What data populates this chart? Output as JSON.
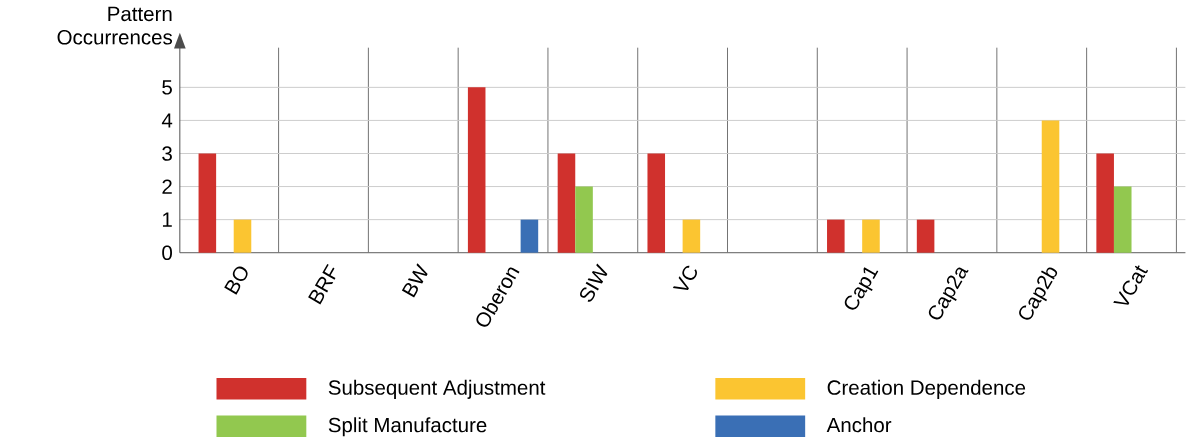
{
  "chart_data": {
    "type": "bar",
    "ylabel": "Pattern Occurrences",
    "categories": [
      "BO",
      "BRF",
      "BW",
      "Oberon",
      "SIW",
      "VC",
      null,
      "Cap1",
      "Cap2a",
      "Cap2b",
      "VCat"
    ],
    "series": [
      {
        "name": "Subsequent Adjustment",
        "color": "#d0312d",
        "values": [
          3,
          0,
          0,
          5,
          3,
          3,
          0,
          1,
          1,
          0,
          3
        ]
      },
      {
        "name": "Split Manufacture",
        "color": "#92c84f",
        "values": [
          0,
          0,
          0,
          0,
          2,
          0,
          0,
          0,
          0,
          0,
          2
        ]
      },
      {
        "name": "Creation Dependence",
        "color": "#fbc531",
        "values": [
          1,
          0,
          0,
          0,
          0,
          1,
          0,
          1,
          0,
          4,
          0
        ]
      },
      {
        "name": "Anchor",
        "color": "#3a6fb5",
        "values": [
          0,
          0,
          0,
          1,
          0,
          0,
          0,
          0,
          0,
          0,
          0
        ]
      }
    ],
    "ylim": [
      0,
      6.2
    ],
    "yticks": [
      0,
      1,
      2,
      3,
      4,
      5
    ],
    "grid": true,
    "legend": "bottom"
  }
}
